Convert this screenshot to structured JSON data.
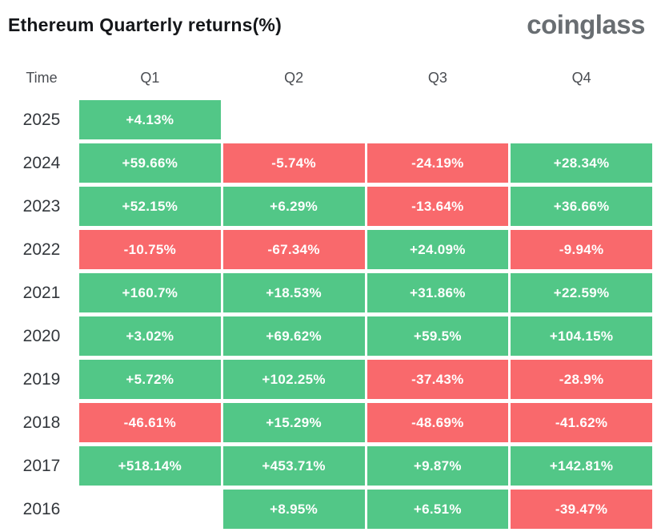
{
  "title": "Ethereum Quarterly returns(%)",
  "logo": "coinglass",
  "colors": {
    "positive": "#52c787",
    "negative": "#f9696c",
    "value_text": "#ffffff"
  },
  "chart_data": {
    "type": "heatmap",
    "title": "Ethereum Quarterly returns(%)",
    "columns": [
      "Time",
      "Q1",
      "Q2",
      "Q3",
      "Q4"
    ],
    "rows": [
      {
        "year": "2025",
        "values": [
          "+4.13%",
          null,
          null,
          null
        ]
      },
      {
        "year": "2024",
        "values": [
          "+59.66%",
          "-5.74%",
          "-24.19%",
          "+28.34%"
        ]
      },
      {
        "year": "2023",
        "values": [
          "+52.15%",
          "+6.29%",
          "-13.64%",
          "+36.66%"
        ]
      },
      {
        "year": "2022",
        "values": [
          "-10.75%",
          "-67.34%",
          "+24.09%",
          "-9.94%"
        ]
      },
      {
        "year": "2021",
        "values": [
          "+160.7%",
          "+18.53%",
          "+31.86%",
          "+22.59%"
        ]
      },
      {
        "year": "2020",
        "values": [
          "+3.02%",
          "+69.62%",
          "+59.5%",
          "+104.15%"
        ]
      },
      {
        "year": "2019",
        "values": [
          "+5.72%",
          "+102.25%",
          "-37.43%",
          "-28.9%"
        ]
      },
      {
        "year": "2018",
        "values": [
          "-46.61%",
          "+15.29%",
          "-48.69%",
          "-41.62%"
        ]
      },
      {
        "year": "2017",
        "values": [
          "+518.14%",
          "+453.71%",
          "+9.87%",
          "+142.81%"
        ]
      },
      {
        "year": "2016",
        "values": [
          null,
          "+8.95%",
          "+6.51%",
          "-39.47%"
        ]
      }
    ]
  }
}
